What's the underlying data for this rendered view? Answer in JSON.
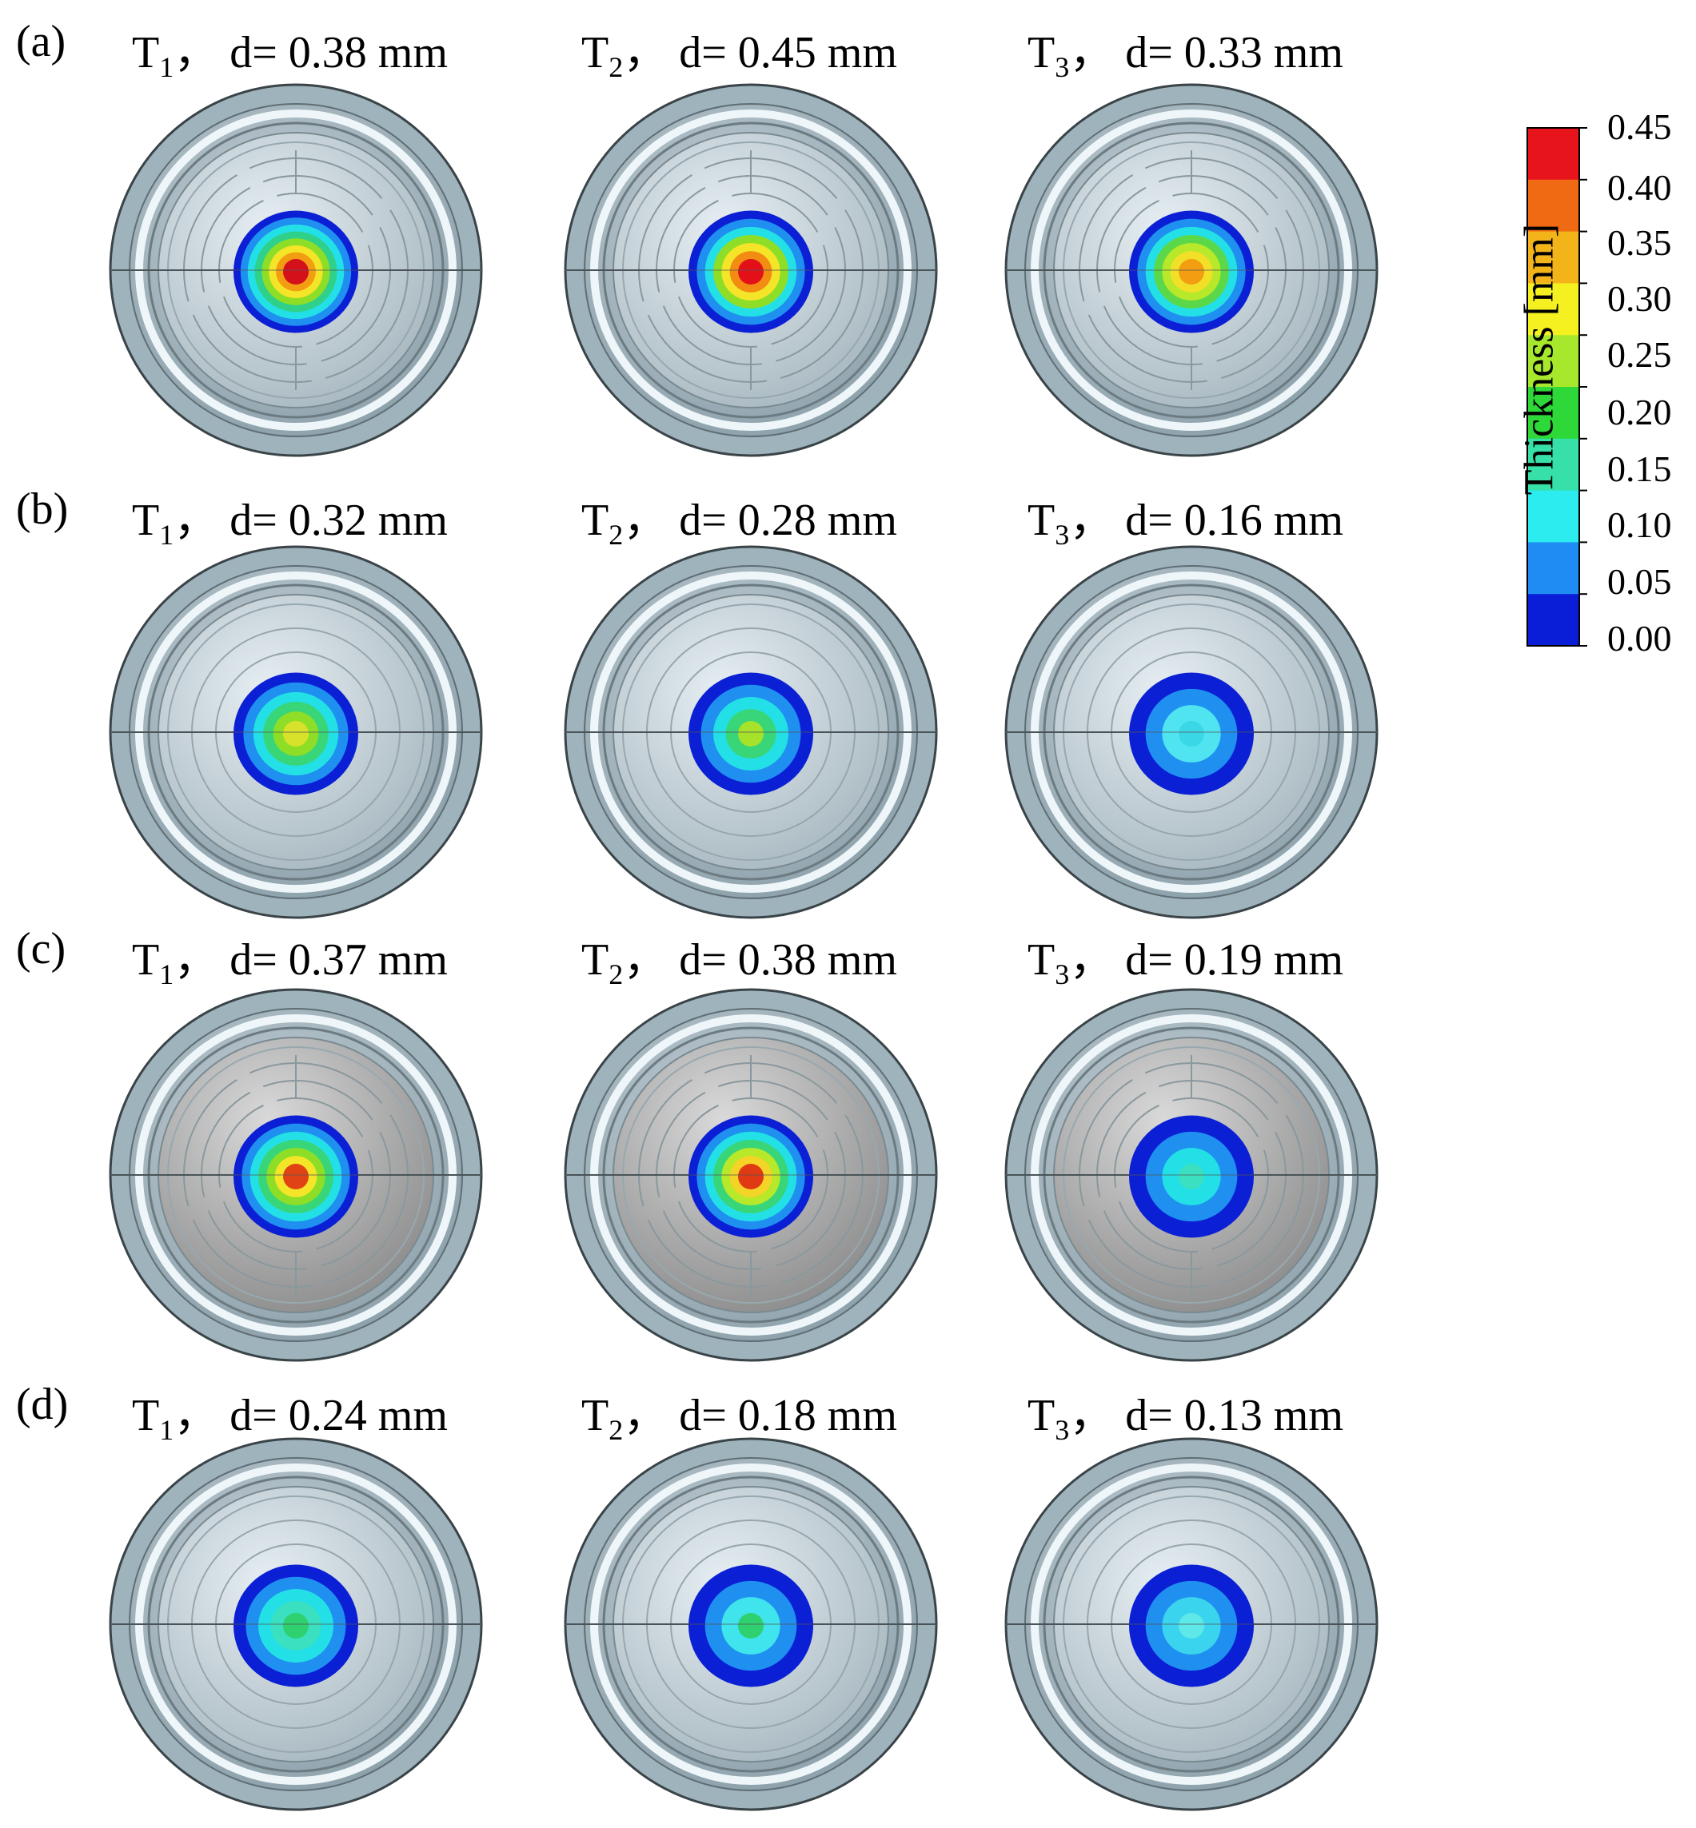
{
  "rows": [
    {
      "tag": "(a)",
      "lid": "ribbed",
      "cells": [
        {
          "t": "T",
          "sub": "1",
          "sep": "，",
          "d": "d= 0.38 mm",
          "core": "#d4101a",
          "rings": [
            "#0b1fd4",
            "#1f8ff0",
            "#23e0e6",
            "#2fd08a",
            "#8ede28",
            "#f5e528",
            "#f29d12"
          ]
        },
        {
          "t": "T",
          "sub": "2",
          "sep": "，",
          "d": "d= 0.45 mm",
          "core": "#e3101a",
          "rings": [
            "#0b1fd4",
            "#1f8ff0",
            "#23e0e6",
            "#8ede28",
            "#f5e528",
            "#f28c12"
          ]
        },
        {
          "t": "T",
          "sub": "3",
          "sep": "，",
          "d": "d= 0.33 mm",
          "core": "#f29d12",
          "rings": [
            "#0b1fd4",
            "#1f8ff0",
            "#23e0e6",
            "#5bd84a",
            "#b8e82a",
            "#f2e028"
          ]
        }
      ]
    },
    {
      "tag": "(b)",
      "lid": "plain",
      "cells": [
        {
          "t": "T",
          "sub": "1",
          "sep": "，",
          "d": "d= 0.32 mm",
          "core": "#d9e22a",
          "rings": [
            "#0b1fd4",
            "#1f8ff0",
            "#23e0e6",
            "#38d678",
            "#8ede28"
          ]
        },
        {
          "t": "T",
          "sub": "2",
          "sep": "，",
          "d": "d= 0.28 mm",
          "core": "#a6e22a",
          "rings": [
            "#0b1fd4",
            "#1f8ff0",
            "#23e0e6",
            "#38d678"
          ]
        },
        {
          "t": "T",
          "sub": "3",
          "sep": "，",
          "d": "d= 0.16 mm",
          "core": "#3ad8e6",
          "rings": [
            "#0b1fd4",
            "#1f8ff0",
            "#4fe4f0"
          ]
        }
      ]
    },
    {
      "tag": "(c)",
      "lid": "ribbed",
      "cells": [
        {
          "t": "T",
          "sub": "1",
          "sep": "，",
          "d": "d= 0.37 mm",
          "core": "#e04414",
          "rings": [
            "#0b1fd4",
            "#1f8ff0",
            "#23e0e6",
            "#38d678",
            "#8ede28",
            "#f5e528"
          ]
        },
        {
          "t": "T",
          "sub": "2",
          "sep": "，",
          "d": "d= 0.38 mm",
          "core": "#e03a14",
          "rings": [
            "#0b1fd4",
            "#1f8ff0",
            "#23e0e6",
            "#38d678",
            "#b8e82a",
            "#f5d428"
          ]
        },
        {
          "t": "T",
          "sub": "3",
          "sep": "，",
          "d": "d= 0.19 mm",
          "core": "#3ae0c0",
          "rings": [
            "#0b1fd4",
            "#1f8ff0",
            "#23e0e6"
          ]
        }
      ]
    },
    {
      "tag": "(d)",
      "lid": "plain",
      "cells": [
        {
          "t": "T",
          "sub": "1",
          "sep": "，",
          "d": "d= 0.24 mm",
          "core": "#2fd070",
          "rings": [
            "#0b1fd4",
            "#1f8ff0",
            "#23e0e6",
            "#3ae0c0"
          ]
        },
        {
          "t": "T",
          "sub": "2",
          "sep": "，",
          "d": "d= 0.18 mm",
          "core": "#2fd070",
          "rings": [
            "#0b1fd4",
            "#1f8ff0",
            "#40e4ec"
          ]
        },
        {
          "t": "T",
          "sub": "3",
          "sep": "，",
          "d": "d= 0.13 mm",
          "core": "#5ee8e8",
          "rings": [
            "#0b1fd4",
            "#1f8ff0",
            "#3ad4ee"
          ]
        }
      ]
    }
  ],
  "colorbar": {
    "title": "Thickness [mm]",
    "ticks": [
      "0.45",
      "0.40",
      "0.35",
      "0.30",
      "0.25",
      "0.20",
      "0.15",
      "0.10",
      "0.05",
      "0.00"
    ],
    "bands": [
      "#e8141c",
      "#f06a14",
      "#f2b418",
      "#f5f020",
      "#a8e82c",
      "#2ed838",
      "#36e0a8",
      "#2cecf0",
      "#1e8cf2",
      "#0a1ed8"
    ]
  }
}
